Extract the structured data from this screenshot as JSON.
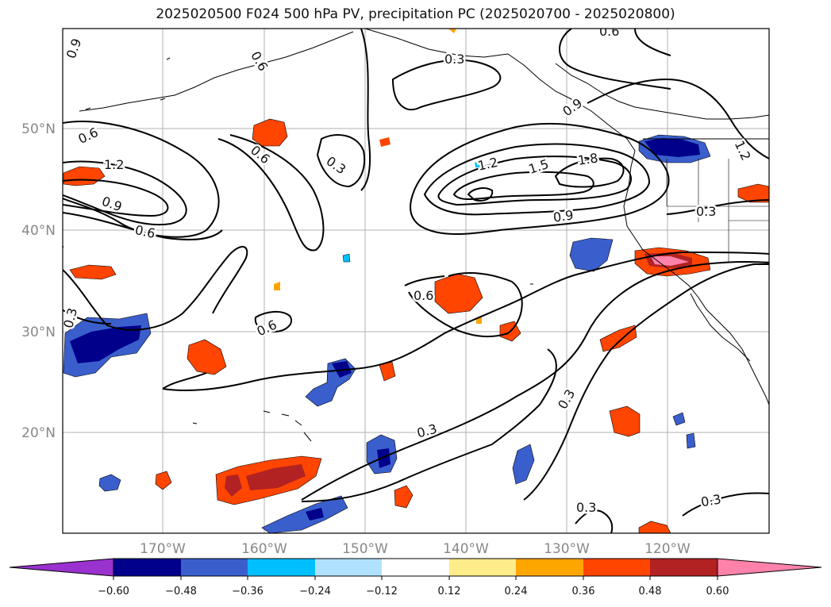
{
  "title": "2025020500 F024 500 hPa PV, precipitation PC (2025020700 - 2025020800)",
  "lat_labels": [
    "50°N",
    "40°N",
    "30°N",
    "20°N"
  ],
  "lon_labels": [
    "170°W",
    "160°W",
    "150°W",
    "140°W",
    "130°W",
    "120°W"
  ],
  "contour_labels": [
    "0.9",
    "0.6",
    "1.2",
    "0.9",
    "0.6",
    "0.6",
    "0.3",
    "0.3",
    "0.6",
    "0.9",
    "1.2",
    "1.5",
    "1.8",
    "0.9",
    "0.3",
    "0.6",
    "0.6",
    "0.3",
    "0.3",
    "0.3",
    "0.3",
    "1.2",
    "0.3",
    "0.6"
  ],
  "colorbar": {
    "ticks": [
      "−0.60",
      "−0.48",
      "−0.36",
      "−0.24",
      "−0.12",
      "0.12",
      "0.24",
      "0.36",
      "0.48",
      "0.60"
    ],
    "colors": [
      "#9a32cd",
      "#00008b",
      "#3a5fcd",
      "#00bfff",
      "#b0e2ff",
      "#ffffff",
      "#ffec8b",
      "#ffa500",
      "#ff4500",
      "#b22222",
      "#ff82ab"
    ]
  }
}
